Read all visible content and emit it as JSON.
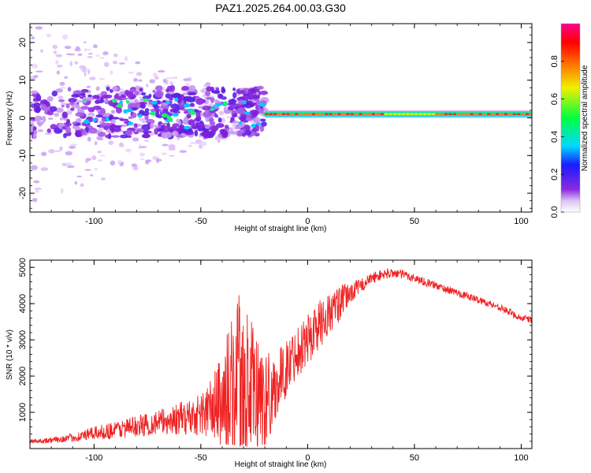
{
  "title": "PAZ1.2025.264.00.03.G30",
  "colors": {
    "snr_line": "#ee2222",
    "band": "#8b2be0",
    "frame": "#000000"
  },
  "chart_data": [
    {
      "type": "heatmap",
      "panel": "spectrogram",
      "xlabel": "Height of straight line (km)",
      "ylabel": "Frequency (Hz)",
      "xlim": [
        -130,
        105
      ],
      "ylim": [
        -25,
        25
      ],
      "xticks": [
        -100,
        -50,
        0,
        50,
        100
      ],
      "xtick_labels": [
        "-100",
        "-50",
        "0",
        "50",
        "100"
      ],
      "yticks": [
        -20,
        -10,
        0,
        10,
        20
      ],
      "ytick_labels": [
        "-20",
        "-10",
        "0",
        "10",
        "20"
      ],
      "colorbar": {
        "label": "Normalized spectral amplitude",
        "range": [
          0,
          1
        ],
        "ticks": [
          0.0,
          0.2,
          0.4,
          0.6,
          0.8
        ],
        "tick_labels": [
          "0.0",
          "0.2",
          "0.4",
          "0.6",
          "0.8"
        ],
        "colormap": [
          "#ffffff",
          "#dcc3f5",
          "#8b2be0",
          "#1a1aff",
          "#00d8ff",
          "#00ff40",
          "#f0f000",
          "#ff7700",
          "#ff0000",
          "#ff0090"
        ]
      },
      "features": {
        "scatter_region_x": [
          -130,
          -20
        ],
        "scatter_band_hz": [
          -5,
          8
        ],
        "tone_x": [
          -20,
          105
        ],
        "tone_freq_hz": 1
      }
    },
    {
      "type": "line",
      "panel": "snr",
      "xlabel": "Height of straight line (km)",
      "ylabel": "SNR (10 * v/v)",
      "xlim": [
        -130,
        105
      ],
      "ylim": [
        0,
        5200
      ],
      "xticks": [
        -100,
        -50,
        0,
        50,
        100
      ],
      "xtick_labels": [
        "-100",
        "-50",
        "0",
        "50",
        "100"
      ],
      "yticks": [
        1000,
        2000,
        3000,
        4000,
        5000
      ],
      "ytick_labels": [
        "1000",
        "2000",
        "3000",
        "4000",
        "5000"
      ],
      "series": [
        {
          "name": "SNR",
          "x": [
            -130,
            -120,
            -110,
            -100,
            -90,
            -80,
            -70,
            -60,
            -50,
            -45,
            -40,
            -35,
            -32,
            -30,
            -25,
            -20,
            -15,
            -10,
            -5,
            0,
            5,
            10,
            15,
            20,
            25,
            30,
            35,
            40,
            45,
            50,
            55,
            60,
            70,
            80,
            90,
            100,
            105
          ],
          "y": [
            200,
            230,
            300,
            420,
            520,
            620,
            720,
            820,
            950,
            1100,
            1300,
            1600,
            1800,
            1500,
            1400,
            1300,
            1700,
            2200,
            2700,
            3000,
            3400,
            3700,
            4000,
            4300,
            4500,
            4700,
            4800,
            4850,
            4800,
            4700,
            4600,
            4500,
            4300,
            4100,
            3900,
            3600,
            3550
          ],
          "noise_amplitude": [
            60,
            80,
            120,
            180,
            250,
            300,
            350,
            450,
            600,
            900,
            1400,
            2200,
            2600,
            2400,
            2000,
            1500,
            900,
            800,
            700,
            800,
            700,
            600,
            500,
            300,
            200,
            150,
            150,
            130,
            130,
            120,
            110,
            110,
            100,
            100,
            100,
            100,
            100
          ]
        }
      ]
    }
  ]
}
